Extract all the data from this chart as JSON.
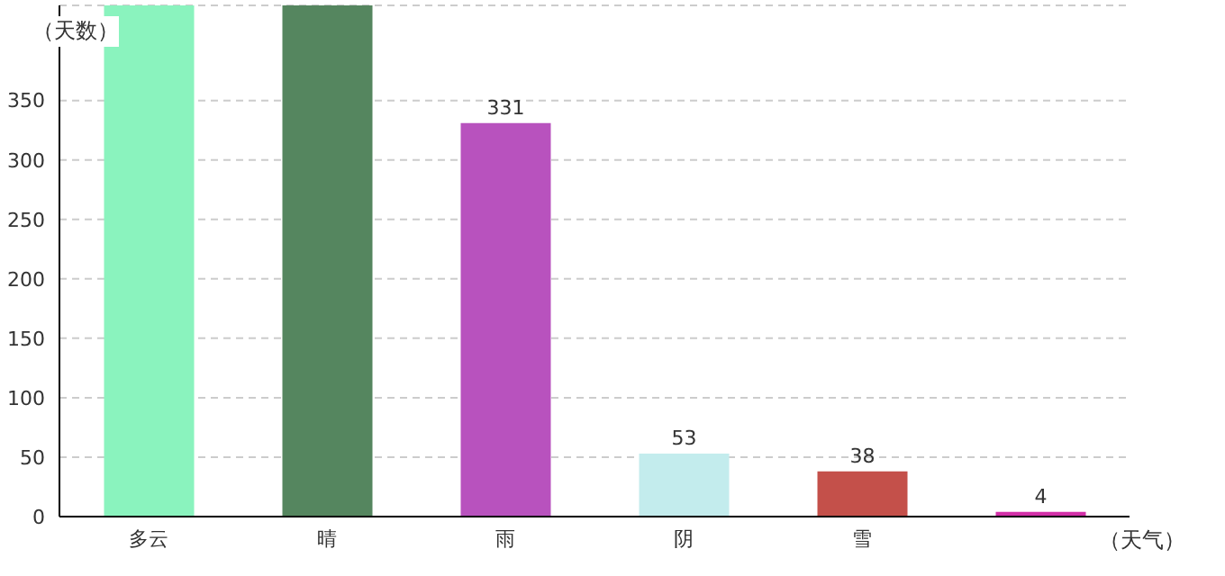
{
  "chart_data": {
    "type": "bar",
    "xlabel": "（天气）",
    "ylabel": "（天数）",
    "categories": [
      "多云",
      "晴",
      "雨",
      "阴",
      "雪",
      null
    ],
    "values": [
      430,
      430,
      331,
      53,
      38,
      4
    ],
    "colors": [
      "#8af3be",
      "#55865f",
      "#b852be",
      "#c3eced",
      "#c4504a",
      "#d22fa8"
    ],
    "value_labels": [
      null,
      null,
      "331",
      "53",
      "38",
      "4"
    ],
    "ylim": [
      0,
      430
    ],
    "yticks": [
      0,
      50,
      100,
      150,
      200,
      250,
      300,
      350
    ],
    "grid": "y"
  }
}
